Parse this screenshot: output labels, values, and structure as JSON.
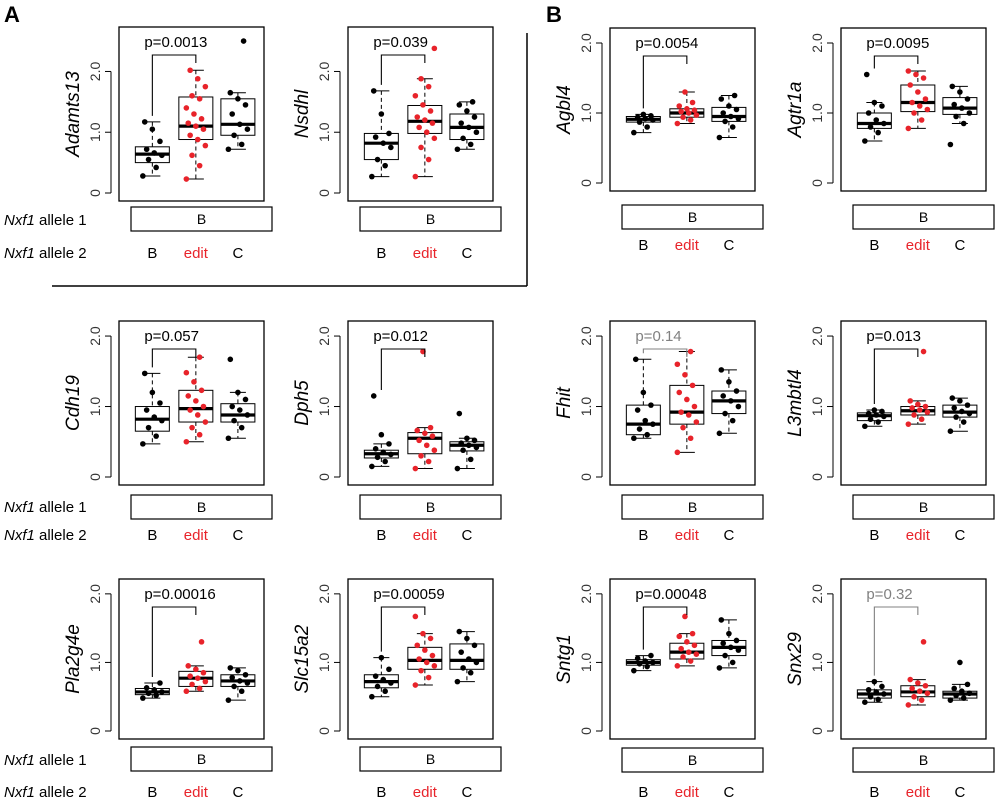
{
  "panel_labels": [
    "A",
    "B"
  ],
  "row_label_allele1_gene": "Nxf1",
  "row_label_allele1_suffix": " allele 1",
  "row_label_allele2_gene": "Nxf1",
  "row_label_allele2_suffix": " allele 2",
  "allele1_value": "B",
  "groups": [
    "B",
    "edit",
    "C"
  ],
  "colors": {
    "black": "#000000",
    "red": "#e8232a",
    "gray": "#808080"
  },
  "y_ticks": [
    "0",
    "1.0",
    "2.0"
  ],
  "chart_data": [
    {
      "type": "box",
      "gene": "Adamts13",
      "ylim": [
        0,
        2.6
      ],
      "pvalue": "p=0.0013",
      "pvalue_color": "#000000",
      "series": [
        {
          "name": "B",
          "color": "#000000",
          "box": {
            "min": 0.28,
            "q1": 0.5,
            "median": 0.64,
            "q3": 0.76,
            "max": 1.17
          },
          "points": [
            0.28,
            0.42,
            0.55,
            0.62,
            0.66,
            0.72,
            0.85,
            1.05,
            1.17
          ]
        },
        {
          "name": "edit",
          "color": "#e8232a",
          "box": {
            "min": 0.23,
            "q1": 0.88,
            "median": 1.1,
            "q3": 1.58,
            "max": 2.02
          },
          "points": [
            0.23,
            0.45,
            0.62,
            0.78,
            0.88,
            0.95,
            1.05,
            1.1,
            1.15,
            1.22,
            1.3,
            1.4,
            1.55,
            1.6,
            1.75,
            1.88,
            2.02
          ]
        },
        {
          "name": "C",
          "color": "#000000",
          "box": {
            "min": 0.72,
            "q1": 0.95,
            "median": 1.13,
            "q3": 1.55,
            "max": 1.65
          },
          "points": [
            0.72,
            0.8,
            0.95,
            1.05,
            1.13,
            1.3,
            1.45,
            1.55,
            1.65,
            2.5
          ]
        }
      ]
    },
    {
      "type": "box",
      "gene": "Nsdhl",
      "ylim": [
        0,
        2.6
      ],
      "pvalue": "p=0.039",
      "pvalue_color": "#000000",
      "series": [
        {
          "name": "B",
          "color": "#000000",
          "box": {
            "min": 0.27,
            "q1": 0.55,
            "median": 0.82,
            "q3": 0.98,
            "max": 1.68
          },
          "points": [
            0.27,
            0.45,
            0.55,
            0.75,
            0.82,
            0.92,
            0.98,
            1.3,
            1.68
          ]
        },
        {
          "name": "edit",
          "color": "#e8232a",
          "box": {
            "min": 0.27,
            "q1": 0.98,
            "median": 1.18,
            "q3": 1.44,
            "max": 1.88
          },
          "points": [
            0.27,
            0.55,
            0.75,
            0.9,
            1.0,
            1.08,
            1.15,
            1.2,
            1.25,
            1.35,
            1.45,
            1.6,
            1.75,
            1.88,
            2.38
          ]
        },
        {
          "name": "C",
          "color": "#000000",
          "box": {
            "min": 0.72,
            "q1": 0.88,
            "median": 1.08,
            "q3": 1.3,
            "max": 1.5
          },
          "points": [
            0.72,
            0.8,
            0.9,
            1.0,
            1.08,
            1.15,
            1.25,
            1.35,
            1.45,
            1.5
          ]
        }
      ]
    },
    {
      "type": "box",
      "gene": "Agbl4",
      "ylim": [
        0,
        2.1
      ],
      "pvalue": "p=0.0054",
      "pvalue_color": "#000000",
      "series": [
        {
          "name": "B",
          "color": "#000000",
          "box": {
            "min": 0.72,
            "q1": 0.87,
            "median": 0.91,
            "q3": 0.95,
            "max": 0.98
          },
          "points": [
            0.72,
            0.8,
            0.87,
            0.9,
            0.92,
            0.94,
            0.96,
            0.98
          ]
        },
        {
          "name": "edit",
          "color": "#e8232a",
          "box": {
            "min": 0.85,
            "q1": 0.94,
            "median": 1.0,
            "q3": 1.06,
            "max": 1.3
          },
          "points": [
            0.85,
            0.9,
            0.94,
            0.97,
            1.0,
            1.02,
            1.04,
            1.06,
            1.1,
            1.15,
            1.3
          ]
        },
        {
          "name": "C",
          "color": "#000000",
          "box": {
            "min": 0.65,
            "q1": 0.88,
            "median": 0.95,
            "q3": 1.08,
            "max": 1.25
          },
          "points": [
            0.65,
            0.8,
            0.88,
            0.92,
            0.95,
            1.0,
            1.05,
            1.1,
            1.2,
            1.25
          ]
        }
      ]
    },
    {
      "type": "box",
      "gene": "Agtr1a",
      "ylim": [
        0,
        2.1
      ],
      "pvalue": "p=0.0095",
      "pvalue_color": "#000000",
      "series": [
        {
          "name": "B",
          "color": "#000000",
          "box": {
            "min": 0.6,
            "q1": 0.78,
            "median": 0.85,
            "q3": 1.0,
            "max": 1.15
          },
          "points": [
            0.6,
            0.72,
            0.8,
            0.85,
            0.9,
            1.0,
            1.1,
            1.15,
            1.55
          ]
        },
        {
          "name": "edit",
          "color": "#e8232a",
          "box": {
            "min": 0.78,
            "q1": 1.02,
            "median": 1.15,
            "q3": 1.4,
            "max": 1.6
          },
          "points": [
            0.78,
            0.9,
            1.0,
            1.05,
            1.1,
            1.15,
            1.2,
            1.3,
            1.4,
            1.5,
            1.55,
            1.6
          ]
        },
        {
          "name": "C",
          "color": "#000000",
          "box": {
            "min": 0.85,
            "q1": 0.98,
            "median": 1.07,
            "q3": 1.22,
            "max": 1.38
          },
          "points": [
            0.55,
            0.85,
            0.95,
            1.0,
            1.07,
            1.12,
            1.2,
            1.3,
            1.38
          ]
        }
      ]
    },
    {
      "type": "box",
      "gene": "Cdh19",
      "ylim": [
        0,
        2.1
      ],
      "pvalue": "p=0.057",
      "pvalue_color": "#000000",
      "series": [
        {
          "name": "B",
          "color": "#000000",
          "box": {
            "min": 0.47,
            "q1": 0.65,
            "median": 0.82,
            "q3": 1.0,
            "max": 1.47
          },
          "points": [
            0.47,
            0.58,
            0.7,
            0.8,
            0.85,
            0.95,
            1.05,
            1.2,
            1.47
          ]
        },
        {
          "name": "edit",
          "color": "#e8232a",
          "box": {
            "min": 0.5,
            "q1": 0.78,
            "median": 0.97,
            "q3": 1.23,
            "max": 1.7
          },
          "points": [
            0.5,
            0.6,
            0.7,
            0.78,
            0.88,
            0.95,
            1.0,
            1.08,
            1.15,
            1.23,
            1.35,
            1.48,
            1.7
          ]
        },
        {
          "name": "C",
          "color": "#000000",
          "box": {
            "min": 0.55,
            "q1": 0.78,
            "median": 0.88,
            "q3": 1.04,
            "max": 1.2
          },
          "points": [
            0.55,
            0.7,
            0.8,
            0.88,
            0.95,
            1.0,
            1.1,
            1.2,
            1.67
          ]
        }
      ]
    },
    {
      "type": "box",
      "gene": "Dph5",
      "ylim": [
        0,
        2.1
      ],
      "pvalue": "p=0.012",
      "pvalue_color": "#000000",
      "series": [
        {
          "name": "B",
          "color": "#000000",
          "box": {
            "min": 0.15,
            "q1": 0.27,
            "median": 0.33,
            "q3": 0.38,
            "max": 0.47
          },
          "points": [
            0.15,
            0.22,
            0.28,
            0.32,
            0.35,
            0.4,
            0.47,
            0.6,
            1.15
          ]
        },
        {
          "name": "edit",
          "color": "#e8232a",
          "box": {
            "min": 0.12,
            "q1": 0.33,
            "median": 0.55,
            "q3": 0.63,
            "max": 0.7
          },
          "points": [
            0.12,
            0.22,
            0.3,
            0.38,
            0.45,
            0.52,
            0.58,
            0.62,
            0.66,
            0.7,
            1.78
          ]
        },
        {
          "name": "C",
          "color": "#000000",
          "box": {
            "min": 0.12,
            "q1": 0.37,
            "median": 0.45,
            "q3": 0.5,
            "max": 0.55
          },
          "points": [
            0.12,
            0.25,
            0.38,
            0.42,
            0.45,
            0.48,
            0.52,
            0.55,
            0.9
          ]
        }
      ]
    },
    {
      "type": "box",
      "gene": "Fhit",
      "ylim": [
        0,
        2.1
      ],
      "pvalue": "p=0.14",
      "pvalue_color": "#808080",
      "series": [
        {
          "name": "B",
          "color": "#000000",
          "box": {
            "min": 0.55,
            "q1": 0.6,
            "median": 0.75,
            "q3": 1.02,
            "max": 1.67
          },
          "points": [
            0.55,
            0.6,
            0.68,
            0.75,
            0.8,
            0.95,
            1.02,
            1.2,
            1.67
          ]
        },
        {
          "name": "edit",
          "color": "#e8232a",
          "box": {
            "min": 0.35,
            "q1": 0.75,
            "median": 0.92,
            "q3": 1.3,
            "max": 1.78
          },
          "points": [
            0.35,
            0.55,
            0.7,
            0.78,
            0.88,
            0.92,
            1.0,
            1.1,
            1.2,
            1.3,
            1.45,
            1.6,
            1.78
          ]
        },
        {
          "name": "C",
          "color": "#000000",
          "box": {
            "min": 0.62,
            "q1": 0.9,
            "median": 1.08,
            "q3": 1.22,
            "max": 1.52
          },
          "points": [
            0.62,
            0.8,
            0.9,
            1.0,
            1.08,
            1.15,
            1.22,
            1.35,
            1.52
          ]
        }
      ]
    },
    {
      "type": "box",
      "gene": "L3mbtl4",
      "ylim": [
        0,
        2.1
      ],
      "pvalue": "p=0.013",
      "pvalue_color": "#000000",
      "series": [
        {
          "name": "B",
          "color": "#000000",
          "box": {
            "min": 0.72,
            "q1": 0.8,
            "median": 0.87,
            "q3": 0.91,
            "max": 0.95
          },
          "points": [
            0.72,
            0.78,
            0.82,
            0.86,
            0.88,
            0.9,
            0.93,
            0.95
          ]
        },
        {
          "name": "edit",
          "color": "#e8232a",
          "box": {
            "min": 0.75,
            "q1": 0.88,
            "median": 0.94,
            "q3": 1.0,
            "max": 1.08
          },
          "points": [
            0.75,
            0.82,
            0.88,
            0.92,
            0.95,
            0.98,
            1.0,
            1.03,
            1.08,
            1.78
          ]
        },
        {
          "name": "C",
          "color": "#000000",
          "box": {
            "min": 0.65,
            "q1": 0.85,
            "median": 0.92,
            "q3": 1.02,
            "max": 1.12
          },
          "points": [
            0.65,
            0.78,
            0.85,
            0.9,
            0.93,
            0.98,
            1.02,
            1.08,
            1.12
          ]
        }
      ]
    },
    {
      "type": "box",
      "gene": "Pla2g4e",
      "ylim": [
        0,
        2.1
      ],
      "pvalue": "p=0.00016",
      "pvalue_color": "#000000",
      "series": [
        {
          "name": "B",
          "color": "#000000",
          "box": {
            "min": 0.48,
            "q1": 0.53,
            "median": 0.57,
            "q3": 0.62,
            "max": 0.7
          },
          "points": [
            0.48,
            0.52,
            0.55,
            0.57,
            0.6,
            0.63,
            0.7
          ]
        },
        {
          "name": "edit",
          "color": "#e8232a",
          "box": {
            "min": 0.58,
            "q1": 0.65,
            "median": 0.77,
            "q3": 0.87,
            "max": 0.95
          },
          "points": [
            0.58,
            0.62,
            0.68,
            0.72,
            0.77,
            0.8,
            0.85,
            0.9,
            0.95,
            1.3
          ]
        },
        {
          "name": "C",
          "color": "#000000",
          "box": {
            "min": 0.45,
            "q1": 0.65,
            "median": 0.73,
            "q3": 0.82,
            "max": 0.92
          },
          "points": [
            0.45,
            0.58,
            0.65,
            0.7,
            0.73,
            0.78,
            0.82,
            0.88,
            0.92
          ]
        }
      ]
    },
    {
      "type": "box",
      "gene": "Slc15a2",
      "ylim": [
        0,
        2.1
      ],
      "pvalue": "p=0.00059",
      "pvalue_color": "#000000",
      "series": [
        {
          "name": "B",
          "color": "#000000",
          "box": {
            "min": 0.5,
            "q1": 0.63,
            "median": 0.72,
            "q3": 0.82,
            "max": 1.07
          },
          "points": [
            0.5,
            0.58,
            0.65,
            0.7,
            0.75,
            0.8,
            0.9,
            1.07
          ]
        },
        {
          "name": "edit",
          "color": "#e8232a",
          "box": {
            "min": 0.67,
            "q1": 0.9,
            "median": 1.03,
            "q3": 1.22,
            "max": 1.42
          },
          "points": [
            0.67,
            0.78,
            0.88,
            0.95,
            1.0,
            1.05,
            1.1,
            1.18,
            1.25,
            1.35,
            1.42,
            1.67
          ]
        },
        {
          "name": "C",
          "color": "#000000",
          "box": {
            "min": 0.72,
            "q1": 0.9,
            "median": 1.03,
            "q3": 1.27,
            "max": 1.45
          },
          "points": [
            0.72,
            0.85,
            0.92,
            1.0,
            1.05,
            1.15,
            1.25,
            1.35,
            1.45
          ]
        }
      ]
    },
    {
      "type": "box",
      "gene": "Sntg1",
      "ylim": [
        0,
        2.1
      ],
      "pvalue": "p=0.00048",
      "pvalue_color": "#000000",
      "series": [
        {
          "name": "B",
          "color": "#000000",
          "box": {
            "min": 0.88,
            "q1": 0.96,
            "median": 1.0,
            "q3": 1.04,
            "max": 1.1
          },
          "points": [
            0.88,
            0.94,
            0.98,
            1.0,
            1.02,
            1.06,
            1.1
          ]
        },
        {
          "name": "edit",
          "color": "#e8232a",
          "box": {
            "min": 0.95,
            "q1": 1.05,
            "median": 1.15,
            "q3": 1.28,
            "max": 1.42
          },
          "points": [
            0.95,
            1.02,
            1.08,
            1.12,
            1.15,
            1.2,
            1.25,
            1.3,
            1.38,
            1.42,
            1.67
          ]
        },
        {
          "name": "C",
          "color": "#000000",
          "box": {
            "min": 0.92,
            "q1": 1.1,
            "median": 1.22,
            "q3": 1.32,
            "max": 1.62
          },
          "points": [
            0.92,
            1.0,
            1.1,
            1.18,
            1.22,
            1.28,
            1.32,
            1.42,
            1.62
          ]
        }
      ]
    },
    {
      "type": "box",
      "gene": "Snx29",
      "ylim": [
        0,
        2.1
      ],
      "pvalue": "p=0.32",
      "pvalue_color": "#808080",
      "series": [
        {
          "name": "B",
          "color": "#000000",
          "box": {
            "min": 0.42,
            "q1": 0.48,
            "median": 0.54,
            "q3": 0.6,
            "max": 0.72
          },
          "points": [
            0.42,
            0.46,
            0.5,
            0.54,
            0.57,
            0.6,
            0.65,
            0.72
          ]
        },
        {
          "name": "edit",
          "color": "#e8232a",
          "box": {
            "min": 0.38,
            "q1": 0.5,
            "median": 0.57,
            "q3": 0.66,
            "max": 0.75
          },
          "points": [
            0.38,
            0.45,
            0.5,
            0.55,
            0.58,
            0.62,
            0.66,
            0.7,
            0.75,
            1.3
          ]
        },
        {
          "name": "C",
          "color": "#000000",
          "box": {
            "min": 0.45,
            "q1": 0.48,
            "median": 0.54,
            "q3": 0.58,
            "max": 0.68
          },
          "points": [
            0.45,
            0.48,
            0.52,
            0.55,
            0.58,
            0.62,
            0.68,
            1.0
          ]
        }
      ]
    }
  ]
}
